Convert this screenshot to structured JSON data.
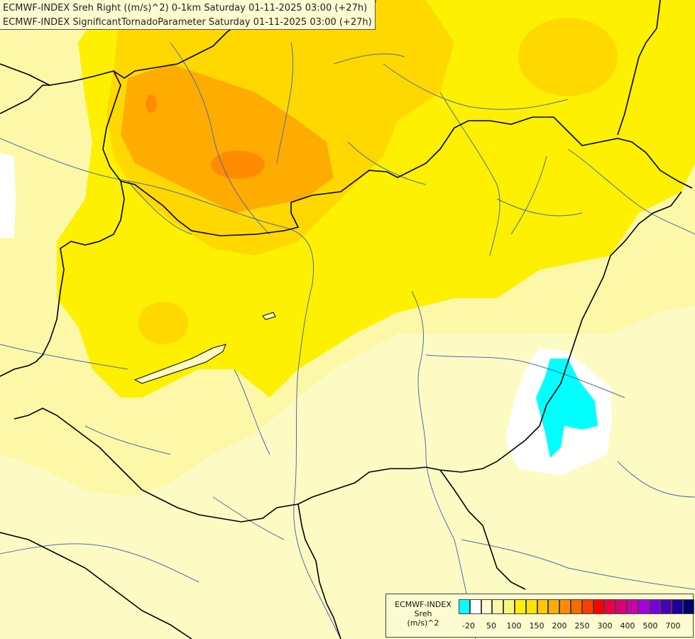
{
  "titles": {
    "line1": "ECMWF-INDEX Sreh Right ((m/s)^2) 0-1km Saturday 01-11-2025 03:00 (+27h)",
    "line2": "ECMWF-INDEX SignificantTornadoParameter Saturday 01-11-2025 03:00 (+27h)"
  },
  "legend": {
    "model": "ECMWF-INDEX",
    "variable": "Sreh",
    "unit": "(m/s)^2",
    "colors": [
      "#00ffff",
      "#ffffff",
      "#fefad0",
      "#fdf8a8",
      "#fcf478",
      "#fdf000",
      "#ffe100",
      "#ffc800",
      "#ffac00",
      "#ff8c00",
      "#ff6800",
      "#ff3c00",
      "#ff0000",
      "#ee0044",
      "#dc0077",
      "#cc00aa",
      "#aa00dd",
      "#7a00dd",
      "#4a00bb",
      "#1a0099",
      "#000070"
    ],
    "labels": [
      "-20",
      "50",
      "100",
      "150",
      "200",
      "250",
      "300",
      "400",
      "500",
      "700"
    ]
  },
  "palette": {
    "background": "#fdfbc4",
    "light_yellow": "#fdf8a8",
    "yellow": "#fdf000",
    "gold": "#ffd800",
    "orange": "#ffac00",
    "dark_orange": "#ff8c00",
    "cyan": "#00ffff",
    "white": "#ffffff",
    "border": "#000000",
    "river": "#4a6ea8"
  }
}
